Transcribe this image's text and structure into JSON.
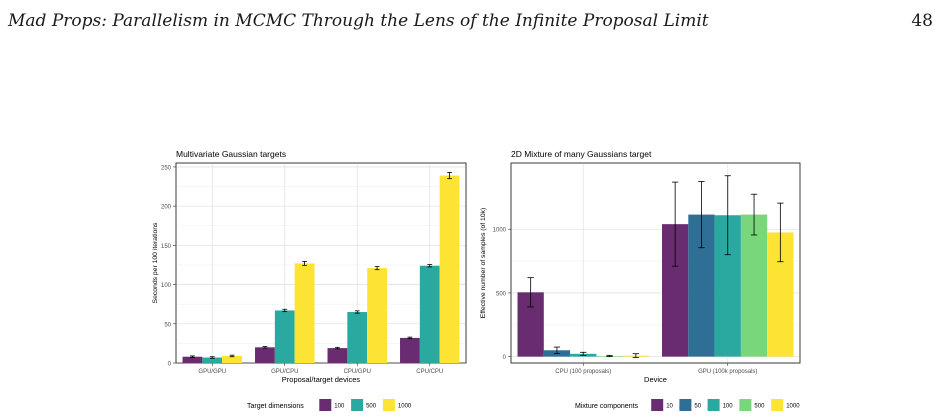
{
  "page": {
    "running_title": "Mad Props: Parallelism in MCMC Through the Lens of the Infinite Proposal Limit",
    "page_number": "48"
  },
  "chart_data": [
    {
      "type": "bar",
      "title": "Multivariate Gaussian targets",
      "xlabel": "Proposal/target devices",
      "ylabel": "Seconds per 100 iterations",
      "ylim": [
        0,
        255
      ],
      "yticks": [
        0,
        50,
        100,
        150,
        200,
        250
      ],
      "grid": true,
      "legend_title": "Target dimensions",
      "legend_position": "bottom",
      "categories": [
        "GPU/GPU",
        "GPU/CPU",
        "CPU/GPU",
        "CPU/CPU"
      ],
      "series": [
        {
          "name": "100",
          "color": "#6a2c70",
          "values": [
            8,
            20,
            19,
            32
          ],
          "err": [
            1,
            1,
            1,
            1
          ]
        },
        {
          "name": "500",
          "color": "#2aa9a1",
          "values": [
            7,
            67,
            65,
            124
          ],
          "err": [
            1,
            1.5,
            1.5,
            1.5
          ]
        },
        {
          "name": "1000",
          "color": "#fde333",
          "values": [
            9,
            127,
            121,
            239
          ],
          "err": [
            1,
            2.5,
            2,
            4
          ]
        }
      ]
    },
    {
      "type": "bar",
      "title": "2D Mixture of many Gaussians target",
      "xlabel": "Device",
      "ylabel": "Effective number of samples (of 10k)",
      "ylim": [
        -50,
        1520
      ],
      "yticks": [
        0,
        500,
        1000
      ],
      "grid": true,
      "legend_title": "Mixture components",
      "legend_position": "bottom",
      "categories": [
        "CPU (100 proposals)",
        "GPU (100k proposals)"
      ],
      "series": [
        {
          "name": "10",
          "color": "#6a2c70",
          "values": [
            505,
            1040
          ],
          "err": [
            115,
            330
          ]
        },
        {
          "name": "50",
          "color": "#2f6f96",
          "values": [
            50,
            1115
          ],
          "err": [
            25,
            260
          ]
        },
        {
          "name": "100",
          "color": "#2aa9a1",
          "values": [
            22,
            1110
          ],
          "err": [
            12,
            310
          ]
        },
        {
          "name": "500",
          "color": "#79d67a",
          "values": [
            5,
            1115
          ],
          "err": [
            5,
            160
          ]
        },
        {
          "name": "1000",
          "color": "#fde333",
          "values": [
            8,
            975
          ],
          "err": [
            15,
            230
          ]
        }
      ]
    }
  ]
}
